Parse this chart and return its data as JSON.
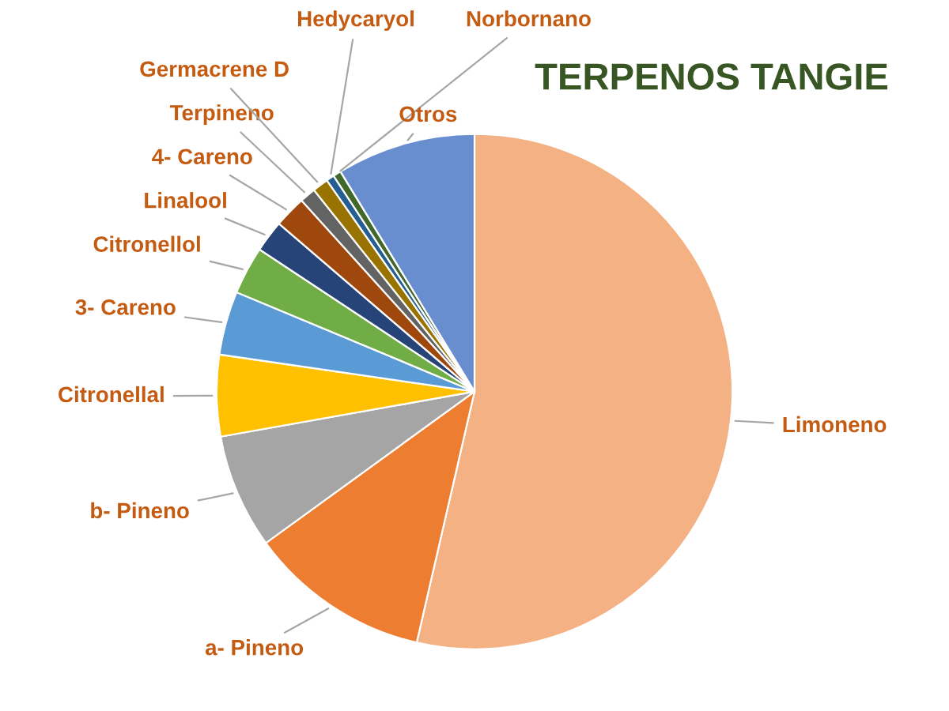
{
  "chart_data": {
    "type": "pie",
    "title": "TERPENOS TANGIE",
    "categories": [
      "Limoneno",
      "a- Pineno",
      "b- Pineno",
      "Citronellal",
      "3- Careno",
      "Citronellol",
      "Linalool",
      "4- Careno",
      "Terpineno",
      "Germacrene D",
      "Hedycaryol",
      "Norbornano",
      "Otros"
    ],
    "values": [
      53.6,
      11.4,
      7.2,
      5.1,
      4.0,
      3.0,
      2.0,
      2.0,
      1.0,
      1.0,
      0.5,
      0.5,
      8.7
    ],
    "colors": [
      "#f4b183",
      "#ed7d31",
      "#a5a5a5",
      "#ffc000",
      "#5b9bd5",
      "#70ad47",
      "#264478",
      "#9e480e",
      "#636363",
      "#997300",
      "#255e91",
      "#43682b",
      "#698ed0"
    ],
    "legend": false
  }
}
